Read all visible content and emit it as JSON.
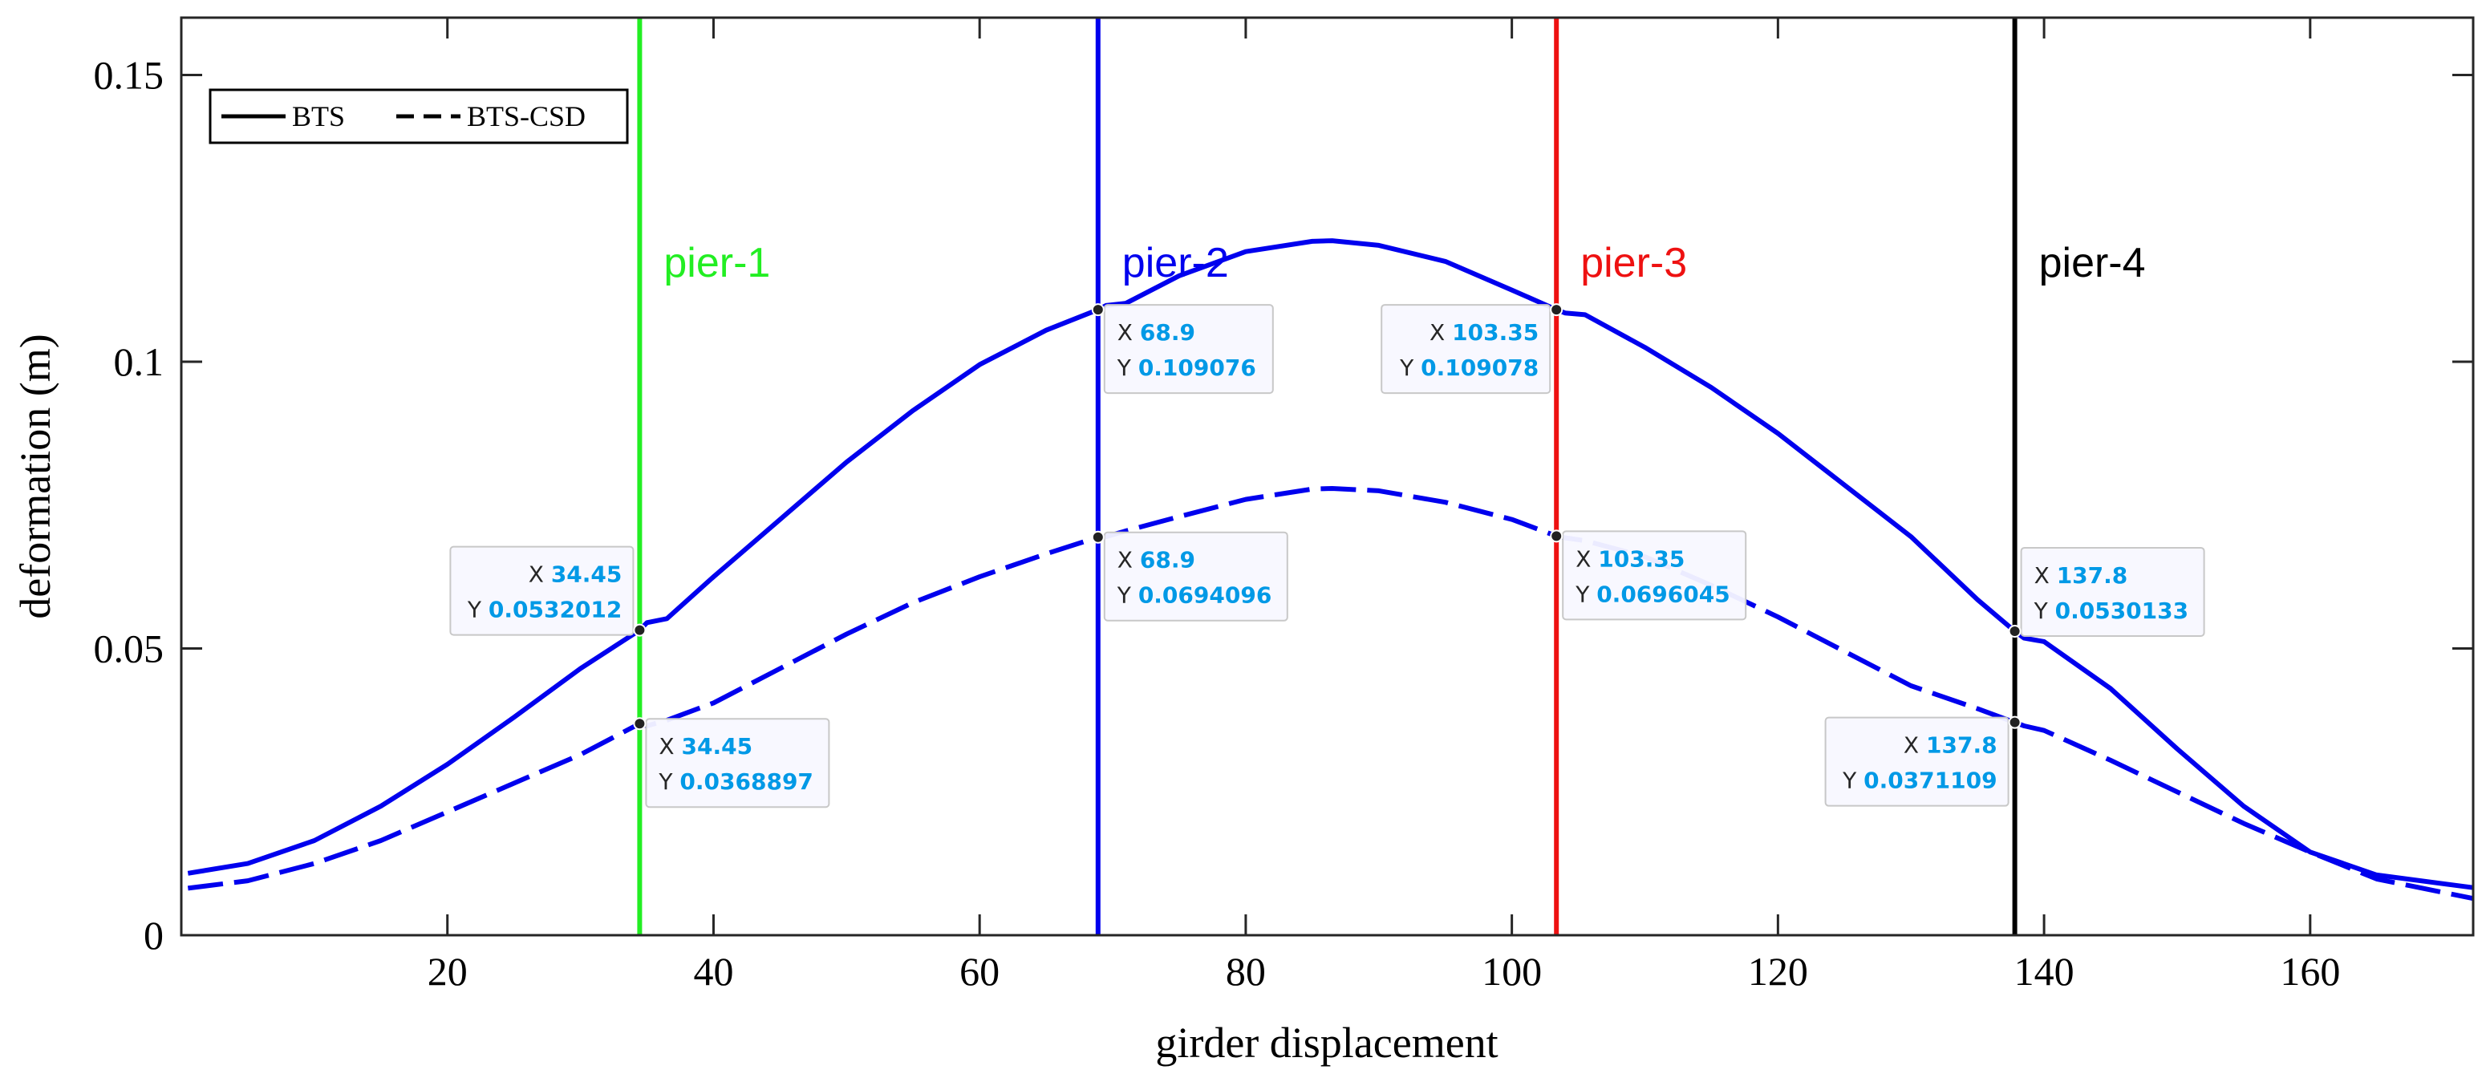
{
  "chart_data": {
    "type": "line",
    "title": "",
    "xlabel": "girder displacement",
    "ylabel": "deformation (m)",
    "xlim": [
      0,
      172.25
    ],
    "ylim": [
      0,
      0.16
    ],
    "x_ticks": [
      20,
      40,
      60,
      80,
      100,
      120,
      140,
      160
    ],
    "x_tick_labels": [
      "20",
      "40",
      "60",
      "80",
      "100",
      "120",
      "140",
      "160"
    ],
    "y_ticks": [
      0,
      0.05,
      0.1,
      0.15
    ],
    "y_tick_labels": [
      "0",
      "0.05",
      "0.1",
      "0.15"
    ],
    "grid": false,
    "legend_position": "top-left",
    "line_color": "#0000ee",
    "series": [
      {
        "name": "BTS",
        "style": "solid",
        "x": [
          0.5,
          5,
          10,
          15,
          20,
          25,
          30,
          34.45,
          35,
          36.5,
          40,
          45,
          50,
          55,
          60,
          65,
          68.9,
          69.5,
          71,
          75,
          80,
          85,
          86.5,
          90,
          95,
          100,
          103.35,
          104,
          105.5,
          110,
          115,
          120,
          125,
          130,
          135,
          137.8,
          138.5,
          140,
          145,
          150,
          155,
          160,
          165,
          172.25
        ],
        "y": [
          0.0108,
          0.0125,
          0.0165,
          0.0225,
          0.0298,
          0.038,
          0.0465,
          0.0532012,
          0.0545,
          0.0552,
          0.0625,
          0.0725,
          0.0825,
          0.0915,
          0.0995,
          0.1055,
          0.109076,
          0.1098,
          0.1102,
          0.115,
          0.1192,
          0.121,
          0.1211,
          0.1203,
          0.1175,
          0.1125,
          0.109078,
          0.1085,
          0.1082,
          0.1025,
          0.0955,
          0.0875,
          0.0785,
          0.0695,
          0.0585,
          0.0530133,
          0.0518,
          0.0512,
          0.043,
          0.0325,
          0.0225,
          0.0145,
          0.0105,
          0.0083
        ]
      },
      {
        "name": "BTS-CSD",
        "style": "dashed",
        "x": [
          0.5,
          5,
          10,
          15,
          20,
          25,
          30,
          34.45,
          35,
          36.5,
          40,
          45,
          50,
          55,
          60,
          65,
          68.9,
          69.5,
          71,
          75,
          80,
          85,
          86.5,
          90,
          95,
          100,
          103.35,
          104,
          105.5,
          110,
          115,
          120,
          125,
          130,
          135,
          137.8,
          138.5,
          140,
          145,
          150,
          155,
          160,
          165,
          172.25
        ],
        "y": [
          0.0082,
          0.0095,
          0.0125,
          0.0165,
          0.0215,
          0.0265,
          0.0315,
          0.0368897,
          0.0365,
          0.0375,
          0.0405,
          0.0465,
          0.0525,
          0.058,
          0.0625,
          0.0665,
          0.0694096,
          0.0695,
          0.0705,
          0.073,
          0.076,
          0.0778,
          0.0779,
          0.0775,
          0.0755,
          0.0725,
          0.0696045,
          0.0693,
          0.0688,
          0.066,
          0.061,
          0.0555,
          0.0495,
          0.0435,
          0.0395,
          0.0371109,
          0.0365,
          0.0357,
          0.0305,
          0.025,
          0.0195,
          0.0145,
          0.0098,
          0.0064
        ]
      }
    ],
    "piers": [
      {
        "label": "pier-1",
        "x": 34.45,
        "color": "#22ee22"
      },
      {
        "label": "pier-2",
        "x": 68.9,
        "color": "#0000ee"
      },
      {
        "label": "pier-3",
        "x": 103.35,
        "color": "#ee1111"
      },
      {
        "label": "pier-4",
        "x": 137.8,
        "color": "#000000"
      }
    ],
    "datatips": [
      {
        "x_text": "34.45",
        "y_text": "0.0532012",
        "x": 34.45,
        "y": 0.0532012,
        "side": "left-up"
      },
      {
        "x_text": "34.45",
        "y_text": "0.0368897",
        "x": 34.45,
        "y": 0.0368897,
        "side": "right-down"
      },
      {
        "x_text": "68.9",
        "y_text": "0.109076",
        "x": 68.9,
        "y": 0.109076,
        "side": "right-down"
      },
      {
        "x_text": "68.9",
        "y_text": "0.0694096",
        "x": 68.9,
        "y": 0.0694096,
        "side": "right-down"
      },
      {
        "x_text": "103.35",
        "y_text": "0.109078",
        "x": 103.35,
        "y": 0.109078,
        "side": "left-down"
      },
      {
        "x_text": "103.35",
        "y_text": "0.0696045",
        "x": 103.35,
        "y": 0.0696045,
        "side": "right-down"
      },
      {
        "x_text": "137.8",
        "y_text": "0.0530133",
        "x": 137.8,
        "y": 0.0530133,
        "side": "right-up"
      },
      {
        "x_text": "137.8",
        "y_text": "0.0371109",
        "x": 137.8,
        "y": 0.0371109,
        "side": "left-down"
      }
    ],
    "datatip_labels": {
      "x": "X",
      "y": "Y"
    }
  }
}
